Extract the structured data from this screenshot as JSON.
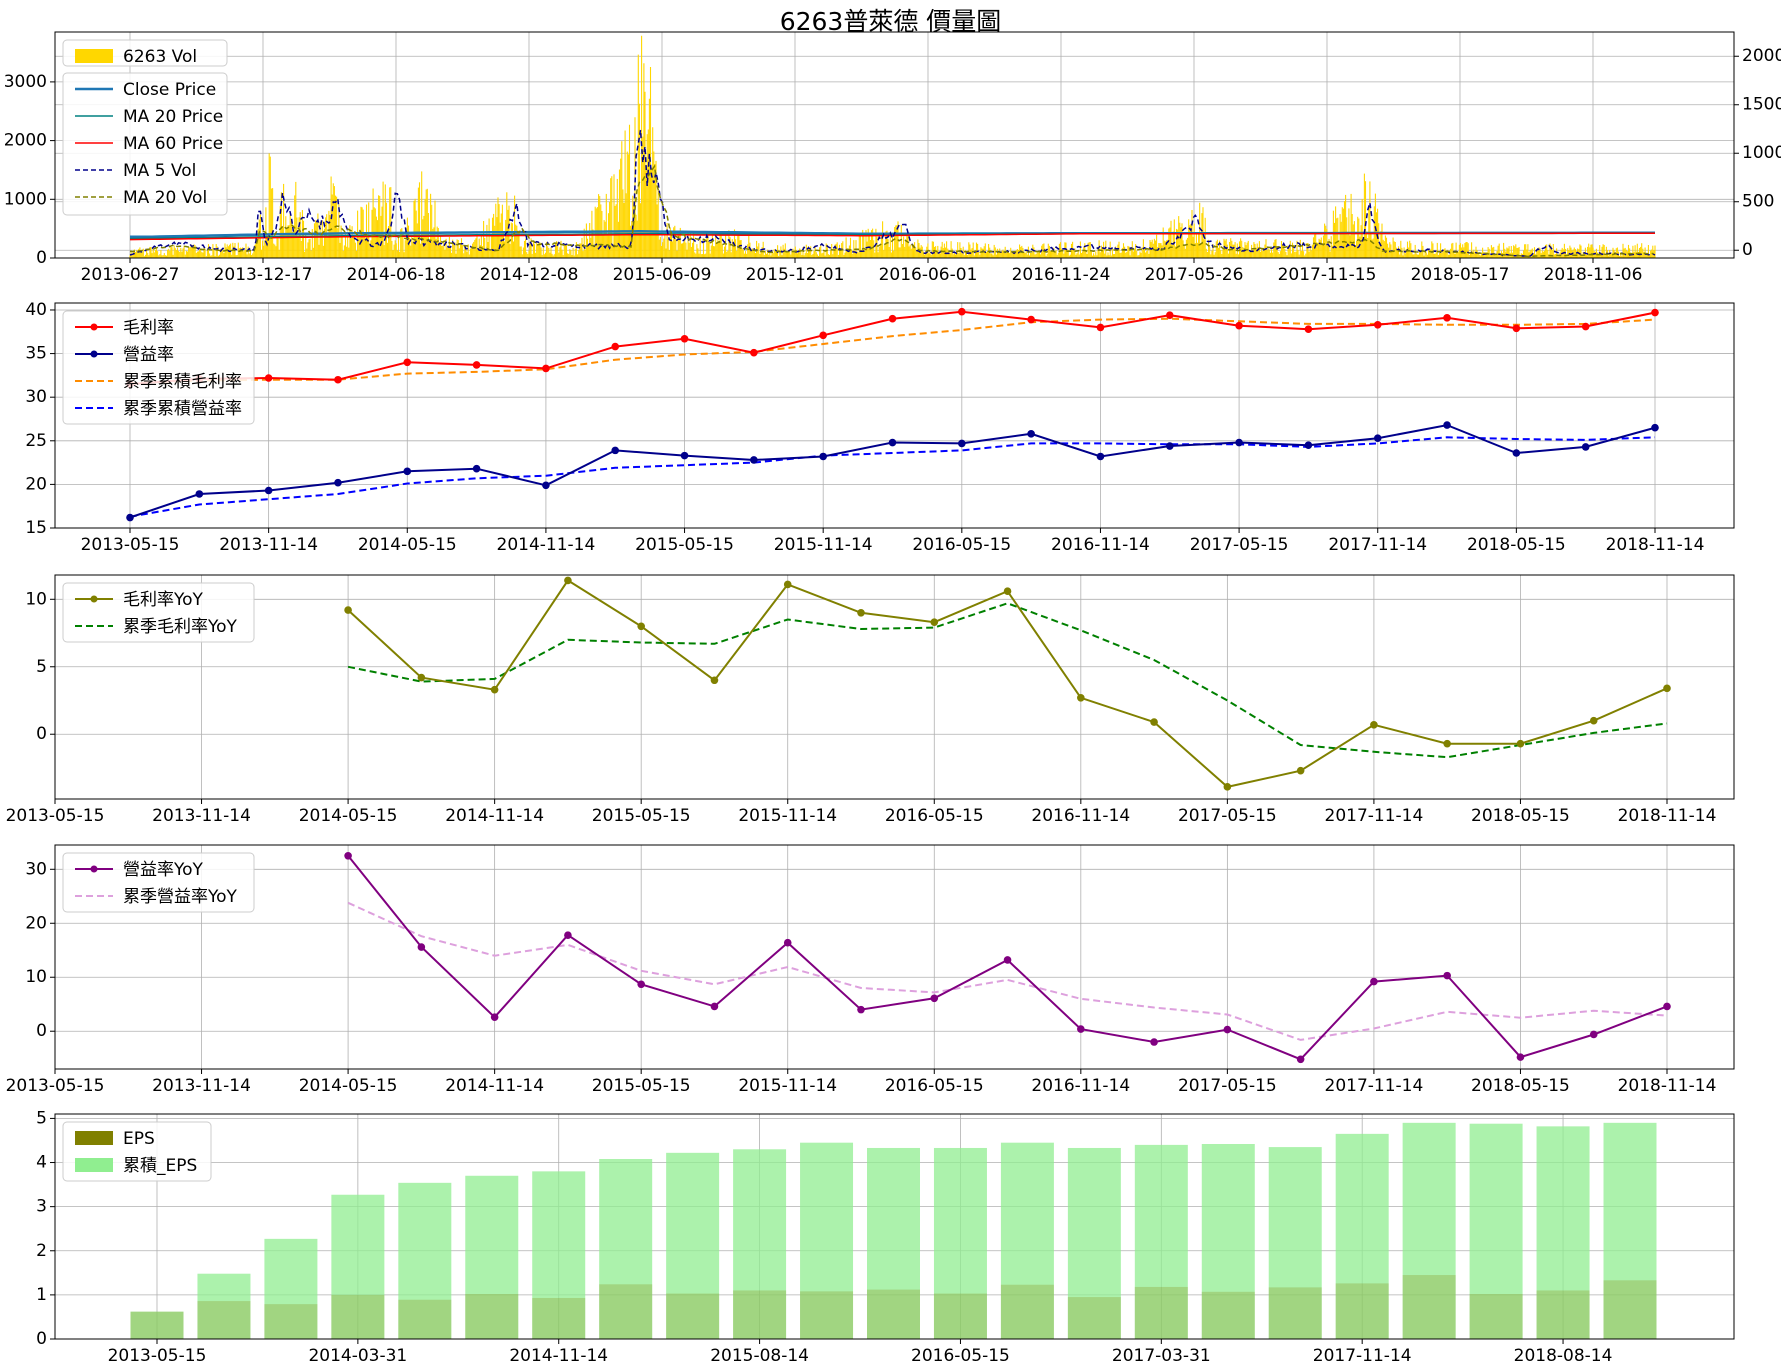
{
  "title": "6263普萊德 價量圖",
  "colors": {
    "vol": "#ffd700",
    "close": "#1f77b4",
    "ma20price": "#008080",
    "ma60price": "#ff0000",
    "ma5vol": "#00008b",
    "ma20vol": "#808000",
    "gross": "#ff0000",
    "op": "#00008b",
    "cumgross": "#ff8c00",
    "cumop": "#0000ff",
    "grossyoy": "#808000",
    "cumgrossyoy": "#008000",
    "opyoy": "#800080",
    "cumopyoy": "#dda0dd",
    "eps": "#808000",
    "cumeps": "#90ee90"
  },
  "chart_data": [
    {
      "type": "bar",
      "panel": "price_volume",
      "legend": [
        "6263 Vol",
        "Close Price",
        "MA 20 Price",
        "MA 60 Price",
        "MA 5 Vol",
        "MA 20 Vol"
      ],
      "legend_position": "top-left",
      "grid": true,
      "xticks": [
        "2013-06-27",
        "2013-12-17",
        "2014-06-18",
        "2014-12-08",
        "2015-06-09",
        "2015-12-01",
        "2016-06-01",
        "2016-11-24",
        "2017-05-26",
        "2017-11-15",
        "2018-05-17",
        "2018-11-06"
      ],
      "x_range_days": [
        0,
        2070
      ],
      "y_left": {
        "lim": [
          0,
          3850
        ],
        "ticks": [
          0,
          1000,
          2000,
          3000
        ]
      },
      "y_right": {
        "lim": [
          -80,
          2250
        ],
        "ticks": [
          0,
          500,
          1000,
          1500,
          2000
        ]
      },
      "vol_keyframes": [
        [
          0,
          150
        ],
        [
          60,
          200
        ],
        [
          120,
          210
        ],
        [
          170,
          260
        ],
        [
          176,
          820
        ],
        [
          182,
          180
        ],
        [
          190,
          2220
        ],
        [
          196,
          250
        ],
        [
          210,
          1580
        ],
        [
          224,
          1520
        ],
        [
          240,
          260
        ],
        [
          282,
          1580
        ],
        [
          290,
          360
        ],
        [
          340,
          1260
        ],
        [
          352,
          1320
        ],
        [
          362,
          260
        ],
        [
          410,
          1800
        ],
        [
          420,
          380
        ],
        [
          460,
          280
        ],
        [
          520,
          1240
        ],
        [
          530,
          300
        ],
        [
          610,
          260
        ],
        [
          682,
          2240
        ],
        [
          690,
          3150
        ],
        [
          700,
          3720
        ],
        [
          710,
          2600
        ],
        [
          720,
          600
        ],
        [
          760,
          400
        ],
        [
          800,
          420
        ],
        [
          820,
          500
        ],
        [
          850,
          280
        ],
        [
          900,
          200
        ],
        [
          960,
          250
        ],
        [
          1040,
          640
        ],
        [
          1060,
          280
        ],
        [
          1200,
          200
        ],
        [
          1300,
          260
        ],
        [
          1380,
          280
        ],
        [
          1455,
          900
        ],
        [
          1465,
          300
        ],
        [
          1600,
          280
        ],
        [
          1680,
          1400
        ],
        [
          1700,
          600
        ],
        [
          1720,
          260
        ],
        [
          1900,
          220
        ],
        [
          1950,
          220
        ],
        [
          2070,
          220
        ]
      ],
      "ma5vol_keyframes": [
        [
          0,
          50
        ],
        [
          40,
          200
        ],
        [
          60,
          260
        ],
        [
          120,
          140
        ],
        [
          170,
          150
        ],
        [
          176,
          900
        ],
        [
          184,
          260
        ],
        [
          196,
          450
        ],
        [
          210,
          1100
        ],
        [
          224,
          420
        ],
        [
          240,
          700
        ],
        [
          265,
          600
        ],
        [
          282,
          1000
        ],
        [
          296,
          350
        ],
        [
          340,
          200
        ],
        [
          350,
          400
        ],
        [
          362,
          1150
        ],
        [
          378,
          300
        ],
        [
          420,
          250
        ],
        [
          500,
          130
        ],
        [
          526,
          900
        ],
        [
          540,
          250
        ],
        [
          620,
          200
        ],
        [
          680,
          200
        ],
        [
          686,
          1300
        ],
        [
          692,
          2200
        ],
        [
          700,
          1500
        ],
        [
          712,
          1600
        ],
        [
          722,
          1100
        ],
        [
          730,
          300
        ],
        [
          790,
          350
        ],
        [
          810,
          270
        ],
        [
          850,
          130
        ],
        [
          900,
          120
        ],
        [
          940,
          200
        ],
        [
          990,
          100
        ],
        [
          1050,
          540
        ],
        [
          1070,
          100
        ],
        [
          1200,
          100
        ],
        [
          1300,
          200
        ],
        [
          1400,
          150
        ],
        [
          1451,
          650
        ],
        [
          1462,
          250
        ],
        [
          1520,
          120
        ],
        [
          1580,
          230
        ],
        [
          1670,
          190
        ],
        [
          1682,
          860
        ],
        [
          1700,
          120
        ],
        [
          1760,
          130
        ],
        [
          1900,
          30
        ],
        [
          1920,
          220
        ],
        [
          1940,
          80
        ],
        [
          2070,
          60
        ]
      ],
      "ma20vol_keyframes": [
        [
          0,
          110
        ],
        [
          60,
          210
        ],
        [
          120,
          130
        ],
        [
          170,
          120
        ],
        [
          176,
          480
        ],
        [
          190,
          340
        ],
        [
          210,
          550
        ],
        [
          230,
          480
        ],
        [
          260,
          420
        ],
        [
          282,
          520
        ],
        [
          320,
          400
        ],
        [
          380,
          340
        ],
        [
          420,
          280
        ],
        [
          500,
          130
        ],
        [
          530,
          500
        ],
        [
          550,
          240
        ],
        [
          620,
          220
        ],
        [
          680,
          200
        ],
        [
          690,
          1400
        ],
        [
          700,
          1500
        ],
        [
          712,
          1450
        ],
        [
          722,
          1000
        ],
        [
          735,
          400
        ],
        [
          790,
          280
        ],
        [
          860,
          100
        ],
        [
          1000,
          150
        ],
        [
          1050,
          350
        ],
        [
          1070,
          120
        ],
        [
          1200,
          100
        ],
        [
          1300,
          120
        ],
        [
          1400,
          150
        ],
        [
          1455,
          250
        ],
        [
          1500,
          130
        ],
        [
          1680,
          300
        ],
        [
          1700,
          120
        ],
        [
          1800,
          100
        ],
        [
          1900,
          30
        ],
        [
          2070,
          80
        ]
      ],
      "close_keyframes": [
        [
          0,
          140
        ],
        [
          30,
          140
        ],
        [
          200,
          165
        ],
        [
          300,
          175
        ],
        [
          690,
          195
        ],
        [
          1000,
          170
        ],
        [
          1300,
          175
        ],
        [
          2070,
          180
        ]
      ],
      "ma60price_keyframes": [
        [
          0,
          110
        ],
        [
          300,
          140
        ],
        [
          690,
          160
        ],
        [
          1000,
          150
        ],
        [
          1300,
          170
        ],
        [
          2070,
          175
        ]
      ],
      "ma20price_keyframes": [
        [
          0,
          120
        ],
        [
          300,
          150
        ],
        [
          690,
          170
        ],
        [
          1000,
          160
        ],
        [
          1300,
          172
        ],
        [
          2070,
          178
        ]
      ]
    },
    {
      "type": "line",
      "panel": "margins",
      "legend": [
        "毛利率",
        "營益率",
        "累季累積毛利率",
        "累季累積營益率"
      ],
      "legend_position": "top-left",
      "grid": true,
      "x": [
        "2013-05-15",
        "2013-08-14",
        "2013-11-14",
        "2014-03-31",
        "2014-05-15",
        "2014-08-14",
        "2014-11-14",
        "2015-03-31",
        "2015-05-15",
        "2015-08-14",
        "2015-11-14",
        "2016-03-31",
        "2016-05-15",
        "2016-08-14",
        "2016-11-14",
        "2017-03-31",
        "2017-05-15",
        "2017-08-14",
        "2017-11-14",
        "2018-03-31",
        "2018-05-15",
        "2018-08-14",
        "2018-11-14"
      ],
      "xticks": [
        "2013-05-15",
        "2013-11-14",
        "2014-05-15",
        "2014-11-14",
        "2015-05-15",
        "2015-11-14",
        "2016-05-15",
        "2016-11-14",
        "2017-05-15",
        "2017-11-14",
        "2018-05-15",
        "2018-11-14"
      ],
      "ylim": [
        15,
        40.8
      ],
      "yticks": [
        15,
        20,
        25,
        30,
        35,
        40
      ],
      "series": [
        {
          "name": "毛利率",
          "values": [
            31.5,
            32.1,
            32.2,
            32.0,
            34.0,
            33.7,
            33.3,
            35.8,
            36.7,
            35.1,
            37.1,
            39.0,
            39.8,
            38.9,
            38.0,
            39.4,
            38.2,
            37.8,
            38.3,
            39.1,
            37.9,
            38.1,
            39.7
          ]
        },
        {
          "name": "營益率",
          "values": [
            16.2,
            18.9,
            19.3,
            20.2,
            21.5,
            21.8,
            19.9,
            23.9,
            23.3,
            22.8,
            23.2,
            24.8,
            24.7,
            25.8,
            23.2,
            24.4,
            24.8,
            24.5,
            25.3,
            26.8,
            23.6,
            24.3,
            26.5
          ]
        },
        {
          "name": "累季累積毛利率",
          "values": [
            31.6,
            31.9,
            32.0,
            32.0,
            32.7,
            32.9,
            33.2,
            34.3,
            34.9,
            35.2,
            36.1,
            37.0,
            37.7,
            38.6,
            38.9,
            39.0,
            38.7,
            38.4,
            38.4,
            38.3,
            38.3,
            38.4,
            38.9
          ]
        },
        {
          "name": "累季累積營益率",
          "values": [
            16.3,
            17.7,
            18.3,
            18.9,
            20.1,
            20.7,
            21.0,
            21.9,
            22.2,
            22.5,
            23.3,
            23.6,
            23.9,
            24.7,
            24.7,
            24.6,
            24.6,
            24.3,
            24.7,
            25.4,
            25.2,
            25.1,
            25.4
          ]
        }
      ]
    },
    {
      "type": "line",
      "panel": "gross_yoy",
      "legend": [
        "毛利率YoY",
        "累季毛利率YoY"
      ],
      "legend_position": "top-left",
      "grid": true,
      "x_start": "2013-05-15",
      "x_first_value_index": 4,
      "xticks": [
        "2013-05-15",
        "2013-11-14",
        "2014-05-15",
        "2014-11-14",
        "2015-05-15",
        "2015-11-14",
        "2016-05-15",
        "2016-11-14",
        "2017-05-15",
        "2017-11-14",
        "2018-05-15",
        "2018-11-14"
      ],
      "ylim": [
        -4.8,
        11.8
      ],
      "yticks": [
        0,
        5,
        10
      ],
      "series": [
        {
          "name": "毛利率YoY",
          "values": [
            9.2,
            4.2,
            3.3,
            11.4,
            8.0,
            4.0,
            11.1,
            9.0,
            8.3,
            10.6,
            2.7,
            0.9,
            -3.9,
            -2.7,
            0.7,
            -0.7,
            -0.7,
            1.0,
            3.4
          ]
        },
        {
          "name": "累季毛利率YoY",
          "values": [
            5.0,
            3.9,
            4.1,
            7.0,
            6.8,
            6.7,
            8.5,
            7.8,
            7.9,
            9.7,
            7.7,
            5.5,
            2.5,
            -0.8,
            -1.3,
            -1.7,
            -0.8,
            0.1,
            0.8
          ]
        }
      ]
    },
    {
      "type": "line",
      "panel": "op_yoy",
      "legend": [
        "營益率YoY",
        "累季營益率YoY"
      ],
      "legend_position": "top-left",
      "grid": true,
      "x_start": "2013-05-15",
      "x_first_value_index": 4,
      "xticks": [
        "2013-05-15",
        "2013-11-14",
        "2014-05-15",
        "2014-11-14",
        "2015-05-15",
        "2015-11-14",
        "2016-05-15",
        "2016-11-14",
        "2017-05-15",
        "2017-11-14",
        "2018-05-15",
        "2018-11-14"
      ],
      "ylim": [
        -7,
        34.5
      ],
      "yticks": [
        0,
        10,
        20,
        30
      ],
      "series": [
        {
          "name": "營益率YoY",
          "values": [
            32.5,
            15.6,
            2.6,
            17.8,
            8.7,
            4.6,
            16.4,
            4.0,
            6.1,
            13.2,
            0.4,
            -2.0,
            0.3,
            -5.2,
            9.2,
            10.3,
            -4.8,
            -0.6,
            4.6
          ]
        },
        {
          "name": "累季營益率YoY",
          "values": [
            23.8,
            17.6,
            14.0,
            16.0,
            11.2,
            8.7,
            11.9,
            8.0,
            7.2,
            9.5,
            6.0,
            4.4,
            3.1,
            -1.6,
            0.5,
            3.6,
            2.5,
            3.8,
            2.9
          ]
        }
      ]
    },
    {
      "type": "bar",
      "panel": "eps",
      "legend": [
        "EPS",
        "累積_EPS"
      ],
      "legend_position": "top-left",
      "grid": true,
      "xticks": [
        "2013-05-15",
        "2014-03-31",
        "2014-11-14",
        "2015-08-14",
        "2016-05-15",
        "2017-03-31",
        "2017-11-14",
        "2018-08-14"
      ],
      "xtick_indices": [
        0,
        3,
        6,
        9,
        12,
        15,
        18,
        21
      ],
      "ylim": [
        0,
        5.1
      ],
      "yticks": [
        0,
        1,
        2,
        3,
        4,
        5
      ],
      "series": [
        {
          "name": "EPS",
          "values": [
            0.62,
            0.86,
            0.79,
            1.0,
            0.89,
            1.02,
            0.93,
            1.24,
            1.03,
            1.1,
            1.08,
            1.12,
            1.03,
            1.23,
            0.95,
            1.18,
            1.07,
            1.17,
            1.26,
            1.45,
            1.02,
            1.1,
            1.33
          ]
        },
        {
          "name": "累積_EPS",
          "values": [
            0.62,
            1.48,
            2.27,
            3.27,
            3.54,
            3.7,
            3.8,
            4.08,
            4.22,
            4.3,
            4.45,
            4.33,
            4.33,
            4.45,
            4.33,
            4.4,
            4.42,
            4.35,
            4.65,
            4.9,
            4.88,
            4.82,
            4.9
          ]
        }
      ]
    }
  ]
}
